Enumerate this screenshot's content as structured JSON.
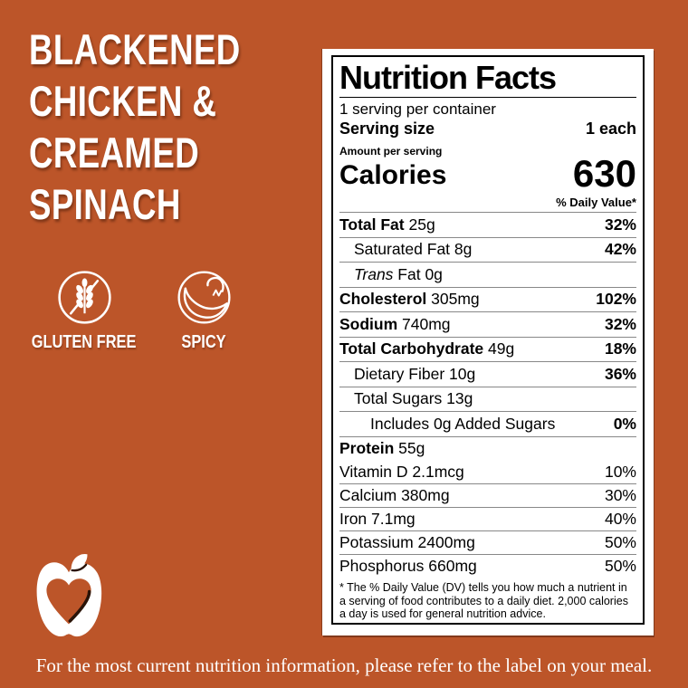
{
  "colors": {
    "background": "#BC5529",
    "panel": "#FFFFFF",
    "label_text": "#000000",
    "light_text": "#FFFFFF"
  },
  "title": {
    "lines": [
      "BLACKENED",
      "CHICKEN &",
      "CREAMED",
      "SPINACH"
    ]
  },
  "badges": [
    {
      "icon": "gluten-free-icon",
      "label": "GLUTEN FREE"
    },
    {
      "icon": "spicy-icon",
      "label": "SPICY"
    }
  ],
  "label": {
    "title": "Nutrition Facts",
    "servings_per_container": "1 serving per container",
    "serving_size_label": "Serving size",
    "serving_size_value": "1 each",
    "amount_per_serving": "Amount per serving",
    "calories_label": "Calories",
    "calories_value": "630",
    "daily_value_header": "% Daily Value*",
    "main_rows": [
      {
        "bold": "Total Fat",
        "text": "25g",
        "value": "32%",
        "value_bold": true,
        "indent": 0
      },
      {
        "text": "Saturated Fat 8g",
        "value": "42%",
        "value_bold": true,
        "indent": 1
      },
      {
        "italic": "Trans",
        "text": "Fat 0g",
        "value": "",
        "value_bold": false,
        "indent": 1
      },
      {
        "bold": "Cholesterol",
        "text": "305mg",
        "value": "102%",
        "value_bold": true,
        "indent": 0
      },
      {
        "bold": "Sodium",
        "text": "740mg",
        "value": "32%",
        "value_bold": true,
        "indent": 0
      },
      {
        "bold": "Total Carbohydrate",
        "text": "49g",
        "value": "18%",
        "value_bold": true,
        "indent": 0
      },
      {
        "text": "Dietary Fiber 10g",
        "value": "36%",
        "value_bold": true,
        "indent": 1
      },
      {
        "text": "Total Sugars 13g",
        "value": "",
        "value_bold": false,
        "indent": 1
      },
      {
        "text": "Includes 0g Added Sugars",
        "value": "0%",
        "value_bold": true,
        "indent": 2
      },
      {
        "bold": "Protein",
        "text": "55g",
        "value": "",
        "value_bold": false,
        "indent": 0
      }
    ],
    "vitamin_rows": [
      {
        "text": "Vitamin D 2.1mcg",
        "value": "10%",
        "value_bold": false,
        "indent": 0
      },
      {
        "text": "Calcium 380mg",
        "value": "30%",
        "value_bold": false,
        "indent": 0
      },
      {
        "text": "Iron 7.1mg",
        "value": "40%",
        "value_bold": false,
        "indent": 0
      },
      {
        "text": "Potassium 2400mg",
        "value": "50%",
        "value_bold": false,
        "indent": 0
      },
      {
        "text": "Phosphorus 660mg",
        "value": "50%",
        "value_bold": false,
        "indent": 0
      }
    ],
    "footnote": "* The % Daily Value (DV) tells you how much a nutrient in a serving of food contributes to a daily diet. 2,000 calories a day is used for general nutrition advice."
  },
  "footer": "For the most current nutrition information, please refer to the label on your meal."
}
